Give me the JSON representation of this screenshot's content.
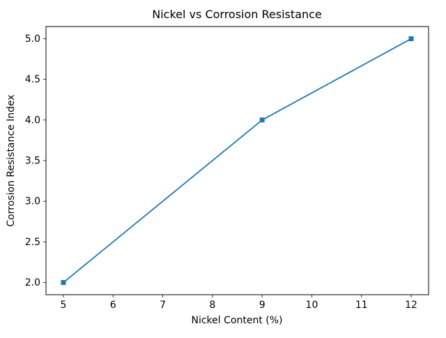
{
  "figure": {
    "background": "#ffffff",
    "text_color": "#000000",
    "spine_color": "#000000"
  },
  "chart_data": {
    "type": "line",
    "title": "Nickel vs Corrosion Resistance",
    "xlabel": "Nickel Content (%)",
    "ylabel": "Corrosion Resistance Index",
    "x": [
      5,
      9,
      12
    ],
    "y": [
      2.0,
      4.0,
      5.0
    ],
    "xlim": [
      4.65,
      12.35
    ],
    "ylim": [
      1.85,
      5.15
    ],
    "xticks": [
      5,
      6,
      7,
      8,
      9,
      10,
      11,
      12
    ],
    "xtick_labels": [
      "5",
      "6",
      "7",
      "8",
      "9",
      "10",
      "11",
      "12"
    ],
    "yticks": [
      2.0,
      2.5,
      3.0,
      3.5,
      4.0,
      4.5,
      5.0
    ],
    "ytick_labels": [
      "2.0",
      "2.5",
      "3.0",
      "3.5",
      "4.0",
      "4.5",
      "5.0"
    ],
    "series_name": "",
    "line_color": "#1f77b4",
    "line_width": 1.8,
    "marker": "square",
    "marker_size": 7,
    "grid": false,
    "legend_position": "none"
  }
}
